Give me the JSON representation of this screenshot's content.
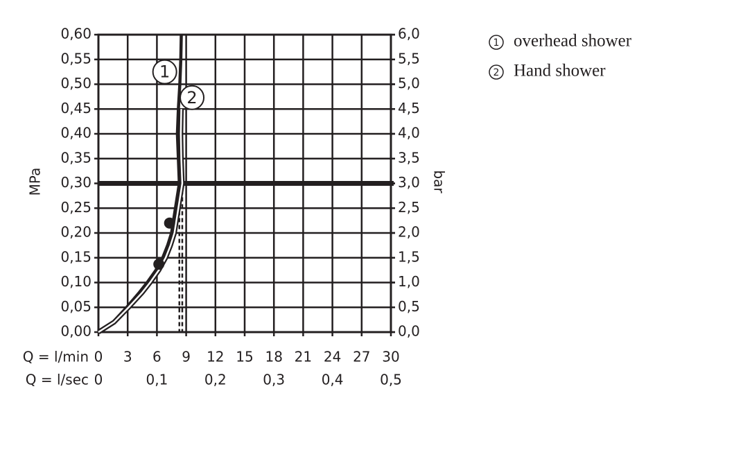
{
  "chart_data": {
    "type": "line",
    "x_label": "Q = l/min",
    "x2_label": "Q = l/sec",
    "y_label": "MPa",
    "y2_label": "bar",
    "xlim": [
      0,
      30
    ],
    "xticks": [
      0,
      3,
      6,
      9,
      12,
      15,
      18,
      21,
      24,
      27,
      30
    ],
    "x2lim": [
      0,
      0.5
    ],
    "x2ticks": [
      0,
      {
        "value": 0.1,
        "label": "0,1"
      },
      {
        "value": 0.2,
        "label": "0,2"
      },
      {
        "value": 0.3,
        "label": "0,3"
      },
      {
        "value": 0.4,
        "label": "0,4"
      },
      {
        "value": 0.5,
        "label": "0,5"
      }
    ],
    "ylim": [
      0,
      0.6
    ],
    "yticks": [
      {
        "value": 0,
        "label": "0,00"
      },
      {
        "value": 0.05,
        "label": "0,05"
      },
      {
        "value": 0.1,
        "label": "0,10"
      },
      {
        "value": 0.15,
        "label": "0,15"
      },
      {
        "value": 0.2,
        "label": "0,20"
      },
      {
        "value": 0.25,
        "label": "0,25"
      },
      {
        "value": 0.3,
        "label": "0,30"
      },
      {
        "value": 0.35,
        "label": "0,35"
      },
      {
        "value": 0.4,
        "label": "0,40"
      },
      {
        "value": 0.45,
        "label": "0,45"
      },
      {
        "value": 0.5,
        "label": "0,50"
      },
      {
        "value": 0.55,
        "label": "0,55"
      },
      {
        "value": 0.6,
        "label": "0,60"
      }
    ],
    "y2lim": [
      0,
      6
    ],
    "y2ticks": [
      {
        "value": 0,
        "label": "0,0"
      },
      {
        "value": 0.5,
        "label": "0,5"
      },
      {
        "value": 1,
        "label": "1,0"
      },
      {
        "value": 1.5,
        "label": "1,5"
      },
      {
        "value": 2,
        "label": "2,0"
      },
      {
        "value": 2.5,
        "label": "2,5"
      },
      {
        "value": 3,
        "label": "3,0"
      },
      {
        "value": 3.5,
        "label": "3,5"
      },
      {
        "value": 4,
        "label": "4,0"
      },
      {
        "value": 4.5,
        "label": "4,5"
      },
      {
        "value": 5,
        "label": "5,0"
      },
      {
        "value": 5.5,
        "label": "5,5"
      },
      {
        "value": 6,
        "label": "6,0"
      }
    ],
    "grid": true,
    "reference_y": 0.3,
    "series": [
      {
        "name": "overhead shower",
        "marker_label": "1",
        "color": "#231f20",
        "style": "solid",
        "x": [
          0,
          1.5,
          2.9,
          4.2,
          5.0,
          5.9,
          6.6,
          7.1,
          7.5,
          7.9,
          8.3,
          8.2,
          8.1,
          8.2,
          8.35,
          8.45,
          8.5
        ],
        "values": [
          0,
          0.02,
          0.05,
          0.08,
          0.1,
          0.125,
          0.15,
          0.175,
          0.2,
          0.25,
          0.3,
          0.35,
          0.4,
          0.45,
          0.5,
          0.55,
          0.6
        ],
        "point": {
          "x": 6.2,
          "y": 0.137
        },
        "annotation": {
          "x": 6.8,
          "y": 0.525
        }
      },
      {
        "name": "Hand shower",
        "marker_label": "2",
        "color": "#231f20",
        "style": "outline",
        "x": [
          0,
          1.6,
          3.1,
          4.5,
          5.3,
          6.2,
          6.9,
          7.4,
          7.8,
          8.2,
          8.6,
          8.5,
          8.45,
          8.5
        ],
        "values": [
          0,
          0.02,
          0.05,
          0.08,
          0.1,
          0.125,
          0.15,
          0.175,
          0.2,
          0.25,
          0.3,
          0.35,
          0.4,
          0.45
        ],
        "point": {
          "x": 7.3,
          "y": 0.22
        },
        "annotation": {
          "x": 9.6,
          "y": 0.473
        }
      }
    ]
  }
}
